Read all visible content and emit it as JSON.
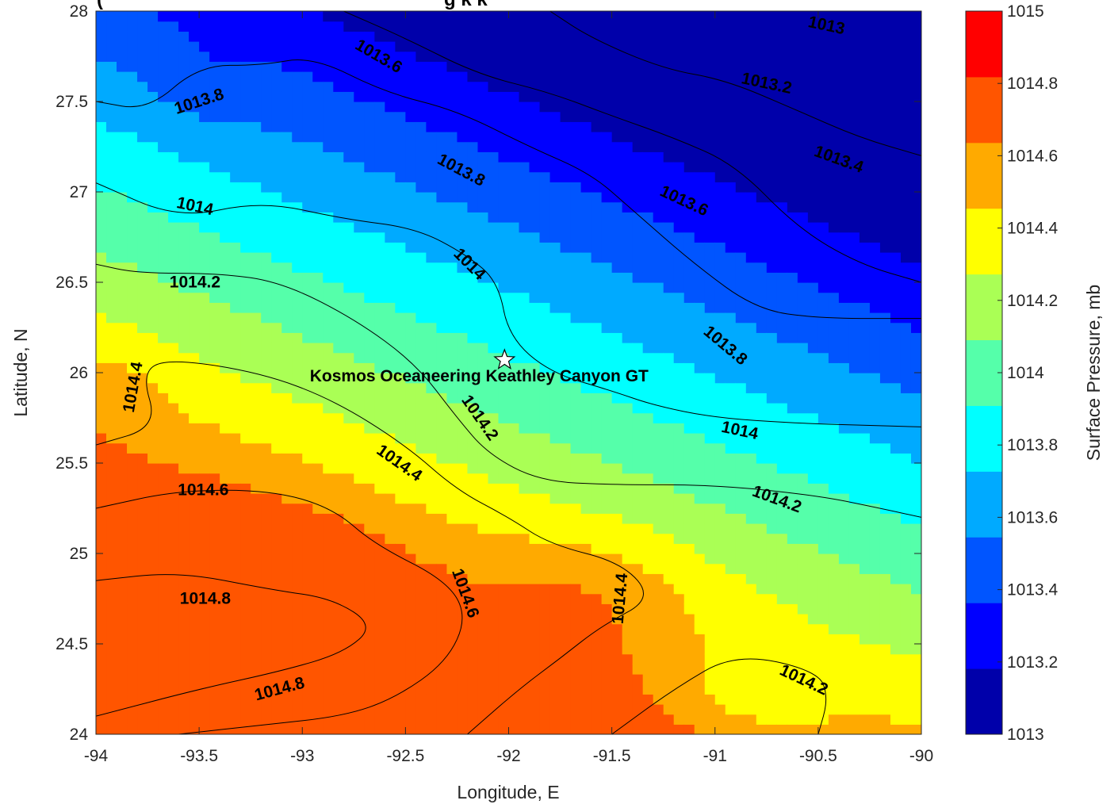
{
  "chart_data": {
    "type": "contour",
    "title": "(",
    "title_fragment": "g   k   k",
    "xlabel": "Longitude, E",
    "ylabel": "Latitude, N",
    "xlim": [
      -94,
      -90
    ],
    "ylim": [
      24,
      28
    ],
    "x_ticks": [
      -94,
      -93.5,
      -93,
      -92.5,
      -92,
      -91.5,
      -91,
      -90.5,
      -90
    ],
    "x_tick_labels": [
      "-94",
      "-93.5",
      "-93",
      "-92.5",
      "-92",
      "-91.5",
      "-91",
      "-90.5",
      "-90"
    ],
    "y_ticks": [
      24,
      24.5,
      25,
      25.5,
      26,
      26.5,
      27,
      27.5,
      28
    ],
    "y_tick_labels": [
      "24",
      "24.5",
      "25",
      "25.5",
      "26",
      "26.5",
      "27",
      "27.5",
      "28"
    ],
    "contour_levels": [
      1013,
      1013.2,
      1013.4,
      1013.6,
      1013.8,
      1014,
      1014.2,
      1014.4,
      1014.6,
      1014.8,
      1015
    ],
    "colorbar": {
      "label": "Surface Pressure, mb",
      "range": [
        1013,
        1015
      ],
      "tick_labels": [
        "1013",
        "1013.2",
        "1013.4",
        "1013.6",
        "1013.8",
        "1014",
        "1014.2",
        "1014.4",
        "1014.6",
        "1014.8",
        "1015"
      ],
      "colors": [
        "#0000AA",
        "#0000FF",
        "#0055FF",
        "#00AAFF",
        "#00FFFF",
        "#55FFAA",
        "#AAFF55",
        "#FFFF00",
        "#FFAA00",
        "#FF5500",
        "#FF0000"
      ]
    },
    "contours": [
      {
        "level": 1013.2,
        "points": [
          [
            -91.8,
            28
          ],
          [
            -91.6,
            27.85
          ],
          [
            -91.25,
            27.68
          ],
          [
            -90.95,
            27.62
          ],
          [
            -90.6,
            27.45
          ],
          [
            -90.3,
            27.3
          ],
          [
            -90,
            27.2
          ]
        ]
      },
      {
        "level": 1013.4,
        "points": [
          [
            -92.8,
            28
          ],
          [
            -92.5,
            27.85
          ],
          [
            -92.15,
            27.65
          ],
          [
            -91.8,
            27.55
          ],
          [
            -91.5,
            27.42
          ],
          [
            -91.2,
            27.3
          ],
          [
            -90.9,
            27.15
          ],
          [
            -90.6,
            26.8
          ],
          [
            -90.3,
            26.6
          ],
          [
            -90,
            26.5
          ]
        ]
      },
      {
        "level": 1013.6,
        "points": [
          [
            -94,
            27.5
          ],
          [
            -93.75,
            27.45
          ],
          [
            -93.5,
            27.7
          ],
          [
            -93.2,
            27.7
          ],
          [
            -92.95,
            27.75
          ],
          [
            -92.6,
            27.55
          ],
          [
            -92.25,
            27.45
          ],
          [
            -91.9,
            27.25
          ],
          [
            -91.6,
            27.1
          ],
          [
            -91.4,
            26.9
          ],
          [
            -91.1,
            26.6
          ],
          [
            -90.8,
            26.35
          ],
          [
            -90.5,
            26.3
          ],
          [
            -90,
            26.3
          ]
        ]
      },
      {
        "level": 1013.8,
        "points": [
          [
            -94,
            27.05
          ],
          [
            -93.6,
            26.85
          ],
          [
            -93.2,
            26.95
          ],
          [
            -92.8,
            26.85
          ],
          [
            -92.45,
            26.8
          ],
          [
            -92.2,
            26.65
          ],
          [
            -92.05,
            26.5
          ],
          [
            -92,
            26.2
          ],
          [
            -91.8,
            26.0
          ],
          [
            -91.5,
            25.9
          ],
          [
            -91.3,
            25.82
          ],
          [
            -91,
            25.75
          ],
          [
            -90.6,
            25.72
          ],
          [
            -90.3,
            25.71
          ],
          [
            -90,
            25.7
          ]
        ]
      },
      {
        "level": 1014,
        "points": [
          [
            -94,
            26.6
          ],
          [
            -93.8,
            26.55
          ],
          [
            -93.4,
            26.55
          ],
          [
            -93.1,
            26.5
          ],
          [
            -92.75,
            26.3
          ],
          [
            -92.45,
            26.05
          ],
          [
            -92.25,
            25.75
          ],
          [
            -92.1,
            25.55
          ],
          [
            -91.85,
            25.4
          ],
          [
            -91.5,
            25.38
          ],
          [
            -91,
            25.38
          ],
          [
            -90.5,
            25.32
          ],
          [
            -90.2,
            25.25
          ],
          [
            -90,
            25.2
          ]
        ]
      },
      {
        "level": 1014.2,
        "points": [
          [
            -94,
            25.6
          ],
          [
            -93.7,
            25.7
          ],
          [
            -93.78,
            26
          ],
          [
            -93.65,
            26.08
          ],
          [
            -93.2,
            26
          ],
          [
            -92.85,
            25.85
          ],
          [
            -92.5,
            25.6
          ],
          [
            -92.25,
            25.35
          ],
          [
            -92,
            25.2
          ],
          [
            -91.8,
            25.05
          ],
          [
            -91.45,
            24.95
          ],
          [
            -91.3,
            24.75
          ],
          [
            -91.55,
            24.6
          ],
          [
            -91.75,
            24.42
          ],
          [
            -91.95,
            24.25
          ],
          [
            -92.2,
            24
          ]
        ]
      },
      {
        "level": 1014.4,
        "points": [
          [
            -94,
            25.25
          ],
          [
            -93.6,
            25.35
          ],
          [
            -93.15,
            25.35
          ],
          [
            -92.85,
            25.25
          ],
          [
            -92.65,
            25.05
          ],
          [
            -92.3,
            24.85
          ],
          [
            -92.2,
            24.65
          ],
          [
            -92.3,
            24.4
          ],
          [
            -92.55,
            24.2
          ],
          [
            -92.8,
            24.1
          ],
          [
            -93.2,
            24.05
          ],
          [
            -93.6,
            24.0
          ]
        ]
      },
      {
        "level": 1014.6,
        "points": [
          [
            -94,
            24.85
          ],
          [
            -93.6,
            24.9
          ],
          [
            -93.15,
            24.8
          ],
          [
            -92.85,
            24.75
          ],
          [
            -92.65,
            24.6
          ],
          [
            -92.8,
            24.45
          ],
          [
            -93.1,
            24.35
          ],
          [
            -93.5,
            24.25
          ],
          [
            -94,
            24.1
          ]
        ]
      },
      {
        "level": 1014.2,
        "points": [
          [
            -91.5,
            24.0
          ],
          [
            -91.2,
            24.25
          ],
          [
            -90.9,
            24.45
          ],
          [
            -90.5,
            24.35
          ],
          [
            -90.45,
            24.2
          ],
          [
            -90.5,
            24.0
          ]
        ]
      }
    ],
    "contour_labels": [
      {
        "text": "1013",
        "x": -90.46,
        "y": 27.92,
        "angle": 12
      },
      {
        "text": "1013.2",
        "x": -90.75,
        "y": 27.6,
        "angle": 12
      },
      {
        "text": "1013.4",
        "x": -90.4,
        "y": 27.18,
        "angle": 20
      },
      {
        "text": "1013.6",
        "x": -92.63,
        "y": 27.75,
        "angle": 30
      },
      {
        "text": "1013.6",
        "x": -91.15,
        "y": 26.95,
        "angle": 25
      },
      {
        "text": "1013.8",
        "x": -93.5,
        "y": 27.5,
        "angle": -18
      },
      {
        "text": "1013.8",
        "x": -92.23,
        "y": 27.12,
        "angle": 28
      },
      {
        "text": "1013.8",
        "x": -90.95,
        "y": 26.15,
        "angle": 40
      },
      {
        "text": "1014",
        "x": -93.52,
        "y": 26.92,
        "angle": 12
      },
      {
        "text": "1014",
        "x": -92.19,
        "y": 26.6,
        "angle": 45
      },
      {
        "text": "1014",
        "x": -90.88,
        "y": 25.68,
        "angle": 12
      },
      {
        "text": "1014.2",
        "x": -93.52,
        "y": 26.5,
        "angle": 0
      },
      {
        "text": "1014.2",
        "x": -92.14,
        "y": 25.75,
        "angle": 55
      },
      {
        "text": "1014.2",
        "x": -90.7,
        "y": 25.3,
        "angle": 20
      },
      {
        "text": "1014.2",
        "x": -90.57,
        "y": 24.3,
        "angle": 25
      },
      {
        "text": "1014.4",
        "x": -93.82,
        "y": 25.92,
        "angle": -80
      },
      {
        "text": "1014.4",
        "x": -92.53,
        "y": 25.5,
        "angle": 35
      },
      {
        "text": "1014.4",
        "x": -91.46,
        "y": 24.75,
        "angle": -85
      },
      {
        "text": "1014.6",
        "x": -93.48,
        "y": 25.35,
        "angle": 0
      },
      {
        "text": "1014.6",
        "x": -92.21,
        "y": 24.78,
        "angle": 70
      },
      {
        "text": "1014.8",
        "x": -93.47,
        "y": 24.75,
        "angle": 0
      },
      {
        "text": "1014.8",
        "x": -93.11,
        "y": 24.25,
        "angle": -15
      }
    ],
    "site": {
      "label": "Kosmos Oceaneering Keathley Canyon GT",
      "lon": -92.02,
      "lat": 26.07,
      "marker": "star"
    }
  }
}
